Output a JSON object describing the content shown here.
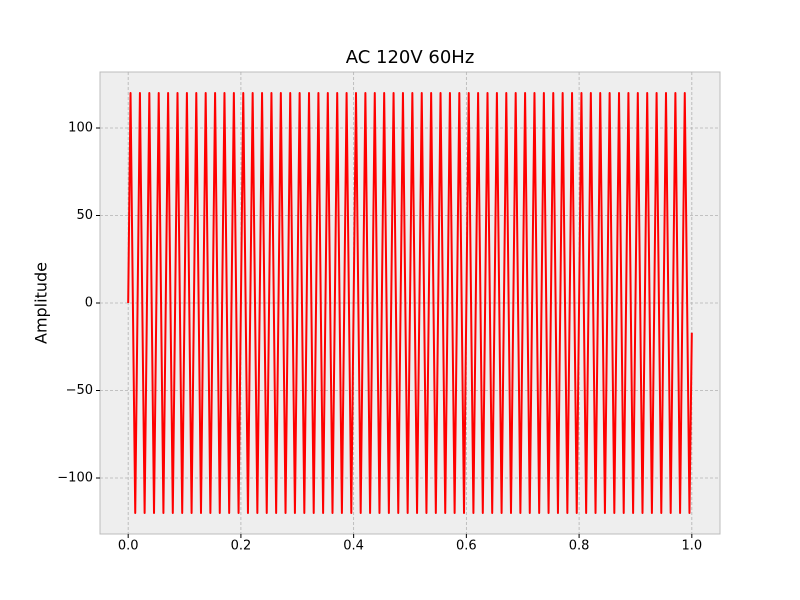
{
  "chart_data": {
    "type": "line",
    "title": "AC 120V 60Hz",
    "y_label": "Amplitude",
    "color": "#ff0000",
    "grid": true,
    "xlim": [
      -0.05,
      1.05
    ],
    "ylim": [
      -132,
      132
    ],
    "xticks": [
      {
        "value": 0,
        "label": "0.0"
      },
      {
        "value": 0.2,
        "label": "0.2"
      },
      {
        "value": 0.4,
        "label": "0.4"
      },
      {
        "value": 0.6,
        "label": "0.6"
      },
      {
        "value": 0.8,
        "label": "0.8"
      },
      {
        "value": 1,
        "label": "1.0"
      }
    ],
    "yticks": [
      {
        "value": -100,
        "label": "−100"
      },
      {
        "value": -50,
        "label": "−50"
      },
      0,
      50,
      100
    ],
    "x": [
      0,
      0.00417,
      0.0125,
      0.02083,
      0.02917,
      0.0375,
      0.04583,
      0.05417,
      0.0625,
      0.07083,
      0.07917,
      0.0875,
      0.09583,
      0.10417,
      0.1125,
      0.12083,
      0.12917,
      0.1375,
      0.14583,
      0.15417,
      0.1625,
      0.17083,
      0.17917,
      0.1875,
      0.19583,
      0.20417,
      0.2125,
      0.22083,
      0.22917,
      0.2375,
      0.24583,
      0.25417,
      0.2625,
      0.27083,
      0.27917,
      0.2875,
      0.29583,
      0.30417,
      0.3125,
      0.32083,
      0.32917,
      0.3375,
      0.34583,
      0.35417,
      0.3625,
      0.37083,
      0.37917,
      0.3875,
      0.39583,
      0.40417,
      0.4125,
      0.42083,
      0.42917,
      0.4375,
      0.44583,
      0.45417,
      0.4625,
      0.47083,
      0.47917,
      0.4875,
      0.49583,
      0.50417,
      0.5125,
      0.52083,
      0.52917,
      0.5375,
      0.54583,
      0.55417,
      0.5625,
      0.57083,
      0.57917,
      0.5875,
      0.59583,
      0.60417,
      0.6125,
      0.62083,
      0.62917,
      0.6375,
      0.64583,
      0.65417,
      0.6625,
      0.67083,
      0.67917,
      0.6875,
      0.69583,
      0.70417,
      0.7125,
      0.72083,
      0.72917,
      0.7375,
      0.74583,
      0.75417,
      0.7625,
      0.77083,
      0.77917,
      0.7875,
      0.79583,
      0.80417,
      0.8125,
      0.82083,
      0.82917,
      0.8375,
      0.84583,
      0.85417,
      0.8625,
      0.87083,
      0.87917,
      0.8875,
      0.89583,
      0.90417,
      0.9125,
      0.92083,
      0.92917,
      0.9375,
      0.94583,
      0.95417,
      0.9625,
      0.97083,
      0.97917,
      0.9875,
      0.99583,
      1
    ],
    "values": [
      0,
      120,
      -120,
      120,
      -120,
      120,
      -120,
      120,
      -120,
      120,
      -120,
      120,
      -120,
      120,
      -120,
      120,
      -120,
      120,
      -120,
      120,
      -120,
      120,
      -120,
      120,
      -120,
      120,
      -120,
      120,
      -120,
      120,
      -120,
      120,
      -120,
      120,
      -120,
      120,
      -120,
      120,
      -120,
      120,
      -120,
      120,
      -120,
      120,
      -120,
      120,
      -120,
      120,
      -120,
      120,
      -120,
      120,
      -120,
      120,
      -120,
      120,
      -120,
      120,
      -120,
      120,
      -120,
      120,
      -120,
      120,
      -120,
      120,
      -120,
      120,
      -120,
      120,
      -120,
      120,
      -120,
      120,
      -120,
      120,
      -120,
      120,
      -120,
      120,
      -120,
      120,
      -120,
      120,
      -120,
      120,
      -120,
      120,
      -120,
      120,
      -120,
      120,
      -120,
      120,
      -120,
      120,
      -120,
      120,
      -120,
      120,
      -120,
      120,
      -120,
      120,
      -120,
      120,
      -120,
      120,
      -120,
      120,
      -120,
      120,
      -120,
      120,
      -120,
      120,
      -120,
      120,
      -120,
      120,
      -120,
      -17
    ]
  }
}
